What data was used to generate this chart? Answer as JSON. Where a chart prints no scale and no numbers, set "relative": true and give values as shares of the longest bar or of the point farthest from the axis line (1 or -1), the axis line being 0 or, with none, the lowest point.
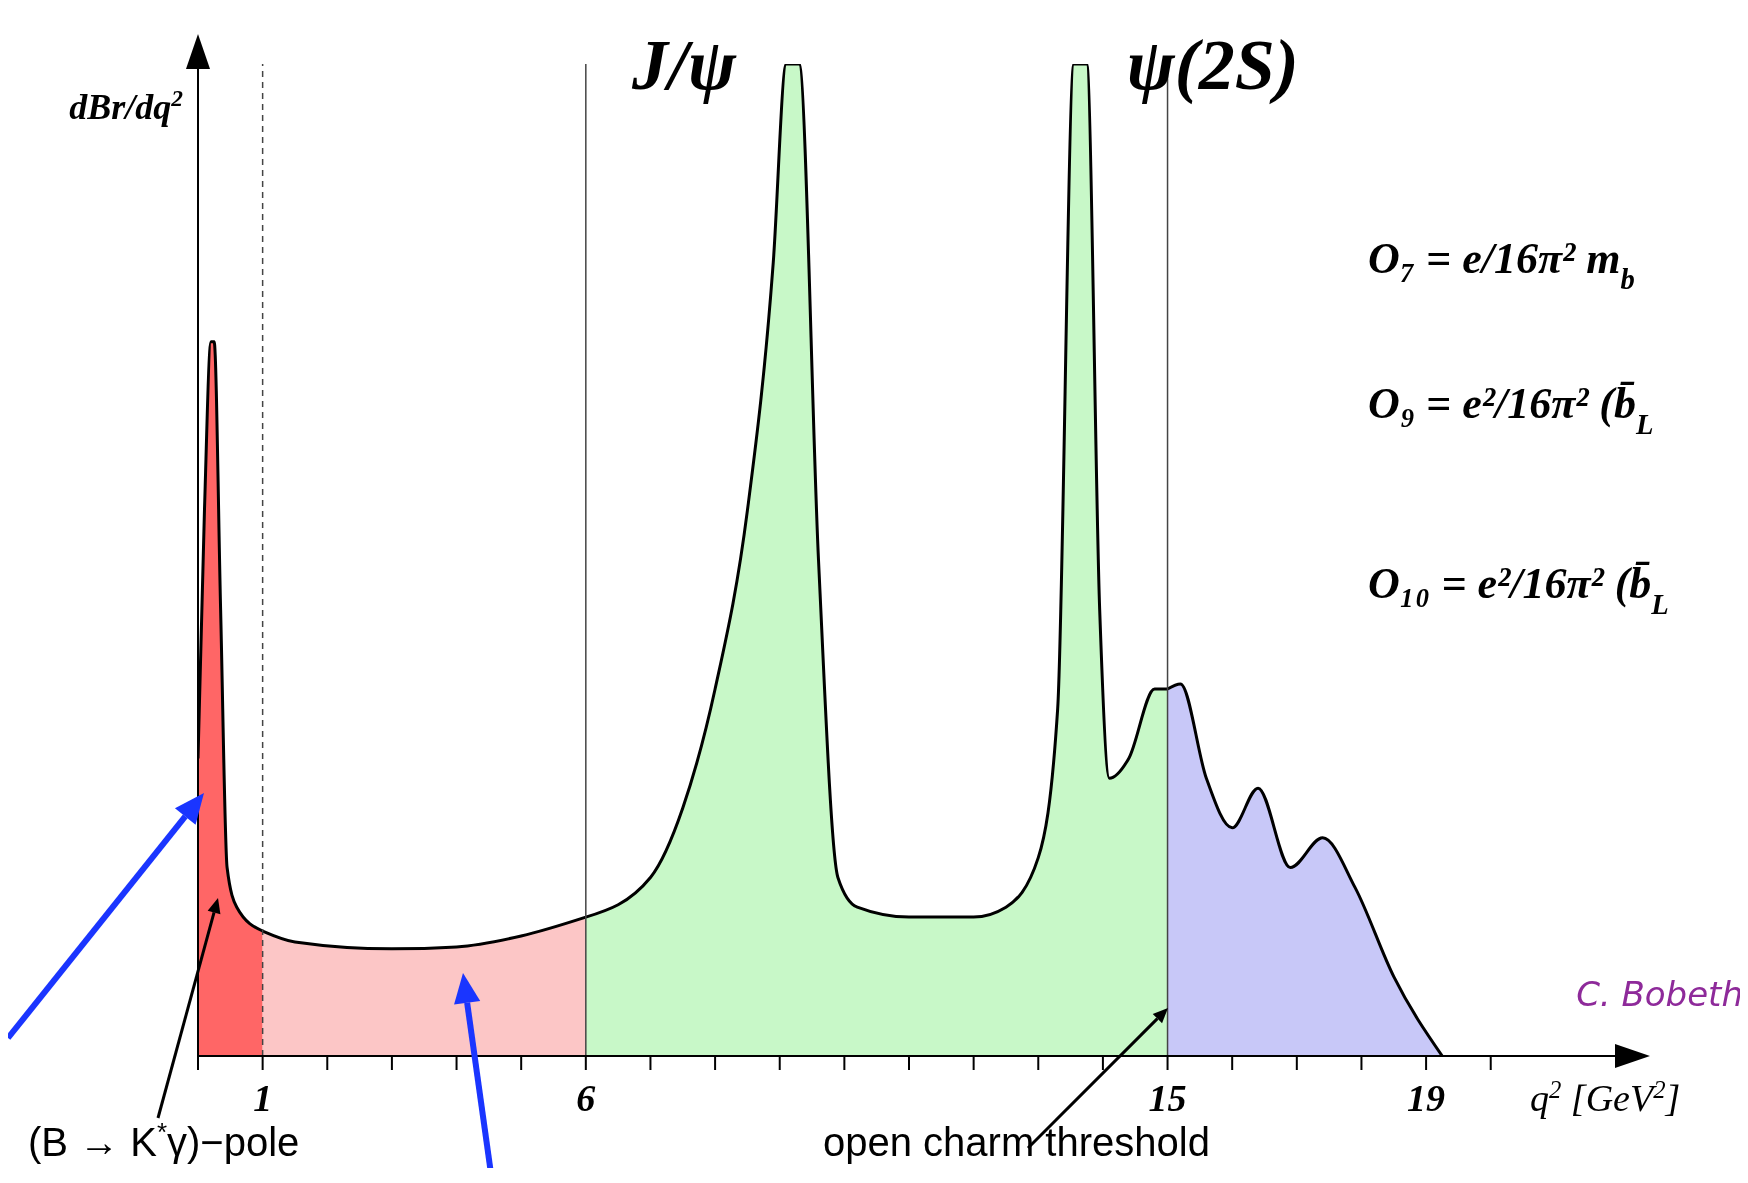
{
  "chart_data": {
    "type": "area",
    "relative": true,
    "xlabel": "q$^{2}$ [GeV$^{2}$]",
    "ylabel": "dBr/dq$^{2}$",
    "xlim": [
      0,
      22
    ],
    "xticks": [
      {
        "value": 0,
        "label": null
      },
      1,
      {
        "value": 2,
        "label": null
      },
      {
        "value": 3,
        "label": null
      },
      {
        "value": 4,
        "label": null
      },
      {
        "value": 5,
        "label": null
      },
      6,
      {
        "value": 7,
        "label": null
      },
      {
        "value": 8,
        "label": null
      },
      {
        "value": 9,
        "label": null
      },
      {
        "value": 10,
        "label": null
      },
      {
        "value": 11,
        "label": null
      },
      {
        "value": 12,
        "label": null
      },
      {
        "value": 13,
        "label": null
      },
      {
        "value": 14,
        "label": null
      },
      15,
      {
        "value": 16,
        "label": null
      },
      {
        "value": 17,
        "label": null
      },
      {
        "value": 18,
        "label": null
      },
      19,
      {
        "value": 20,
        "label": null
      }
    ],
    "series": [
      {
        "color": "#ff6666",
        "x": [
          0,
          0.1,
          0.2,
          0.25,
          0.35,
          0.45,
          0.6,
          1
        ],
        "values": [
          0.3,
          0.55,
          0.72,
          0.72,
          0.45,
          0.19,
          0.15,
          0.126
        ]
      },
      {
        "color": "#fcc6c6",
        "x": [
          1,
          1.5,
          3,
          4,
          5,
          6
        ],
        "values": [
          0.126,
          0.115,
          0.108,
          0.11,
          0.121,
          0.14
        ]
      },
      {
        "color": "#c8f8c8",
        "x": [
          6,
          7,
          7.5,
          8,
          8.5,
          8.9,
          9.1,
          9.3,
          9.6,
          9.9,
          10.2,
          11,
          12,
          12.5,
          13,
          13.3,
          13.55,
          13.75,
          13.95,
          14.1,
          14.4,
          14.8,
          15
        ],
        "values": [
          0.14,
          0.18,
          0.25,
          0.37,
          0.55,
          0.8,
          1,
          1,
          0.5,
          0.18,
          0.15,
          0.14,
          0.14,
          0.15,
          0.2,
          0.35,
          1,
          1,
          0.45,
          0.28,
          0.3,
          0.37,
          0.37
        ]
      },
      {
        "color": "#c8c8f8",
        "x": [
          15,
          15.2,
          15.6,
          16,
          16.4,
          16.9,
          17.4,
          17.9,
          18.5,
          19.25
        ],
        "values": [
          0.37,
          0.375,
          0.28,
          0.23,
          0.27,
          0.19,
          0.22,
          0.17,
          0.08,
          0
        ]
      }
    ],
    "ref_lines": [
      {
        "axis": "x",
        "value": 1,
        "line_style": "dashed"
      },
      {
        "axis": "x",
        "value": 6
      },
      {
        "axis": "x",
        "value": 15
      }
    ],
    "annotations": [
      {
        "text": "J/ψ",
        "x": 9.1,
        "y": 1
      },
      {
        "text": "ψ(2S)",
        "x": 13.75,
        "y": 1
      },
      "(B → K$^{*}$γ)−pole",
      "open charm threshold",
      "C. Bobeth",
      "O₇ = e/16π² m$_{b}$",
      "O₉ = e²/16π² (b̄$_{L}$",
      "O₁₀ = e²/16π² (b̄$_{L}$"
    ]
  }
}
